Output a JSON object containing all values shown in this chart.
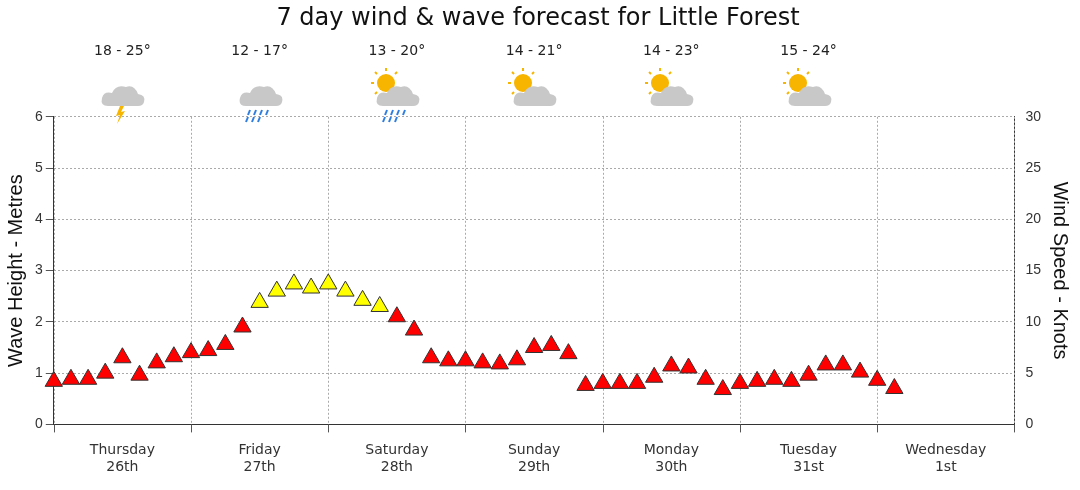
{
  "chart_data": {
    "type": "scatter",
    "title": "7 day wind & wave forecast for Little Forest",
    "ylabel": "Wave Height - Metres",
    "y2label": "Wind Speed - Knots",
    "annotations": [
      "18 - 25°",
      "12 - 17°",
      "13 - 20°",
      "14 - 21°",
      "14 - 23°",
      "15 - 24°"
    ],
    "categories": [
      null,
      null,
      null,
      null,
      "Thursday 26th",
      null,
      null,
      null,
      null,
      null,
      null,
      null,
      "Friday 27th",
      null,
      null,
      null,
      null,
      null,
      null,
      null,
      "Saturday 28th",
      null,
      null,
      null,
      null,
      null,
      null,
      null,
      "Sunday 29th",
      null,
      null,
      null,
      null,
      null,
      null,
      null,
      "Monday 30th",
      null,
      null,
      null,
      null,
      null,
      null,
      null,
      "Tuesday 31st",
      null,
      null,
      null,
      null,
      null,
      null,
      null,
      "Wednesday 1st",
      null,
      null,
      null,
      null
    ],
    "series": [
      {
        "axis": "y2",
        "values": [
          4.2,
          4.4,
          4.4,
          5.0,
          6.5,
          4.8,
          6.0,
          6.6,
          7.0,
          7.2,
          7.8,
          9.5,
          11.9,
          13.0,
          13.7,
          13.3,
          13.7,
          13.0,
          12.1,
          11.5,
          10.5,
          9.2,
          6.5,
          6.2,
          6.2,
          6.0,
          5.9,
          6.3,
          7.5,
          7.7,
          6.9,
          3.8,
          4.0,
          4.0,
          4.0,
          4.6,
          5.7,
          5.5,
          4.4,
          3.4,
          4.0,
          4.2,
          4.4,
          4.2,
          4.8,
          5.8,
          5.8,
          5.1,
          4.3,
          3.5,
          null,
          null,
          null,
          null,
          null,
          null,
          null
        ],
        "colors": [
          "#ff0000",
          "#ff0000",
          "#ff0000",
          "#ff0000",
          "#ff0000",
          "#ff0000",
          "#ff0000",
          "#ff0000",
          "#ff0000",
          "#ff0000",
          "#ff0000",
          "#ff0000",
          "#ffff00",
          "#ffff00",
          "#ffff00",
          "#ffff00",
          "#ffff00",
          "#ffff00",
          "#ffff00",
          "#ffff00",
          "#ff0000",
          "#ff0000",
          "#ff0000",
          "#ff0000",
          "#ff0000",
          "#ff0000",
          "#ff0000",
          "#ff0000",
          "#ff0000",
          "#ff0000",
          "#ff0000",
          "#ff0000",
          "#ff0000",
          "#ff0000",
          "#ff0000",
          "#ff0000",
          "#ff0000",
          "#ff0000",
          "#ff0000",
          "#ff0000",
          "#ff0000",
          "#ff0000",
          "#ff0000",
          "#ff0000",
          "#ff0000",
          "#ff0000",
          "#ff0000",
          "#ff0000",
          "#ff0000",
          "#ff0000",
          "#ff0000",
          "#ff0000",
          "#ff0000",
          "#ff0000",
          "#ff0000",
          "#ff0000",
          "#ff0000"
        ]
      }
    ],
    "marker": "triangle",
    "ylim": [
      0,
      6
    ],
    "yticks": [
      0,
      1,
      2,
      3,
      4,
      5,
      6
    ],
    "y2lim": [
      0,
      30
    ],
    "y2ticks": [
      0,
      5,
      10,
      15,
      20,
      25,
      30
    ],
    "grid": true
  }
}
